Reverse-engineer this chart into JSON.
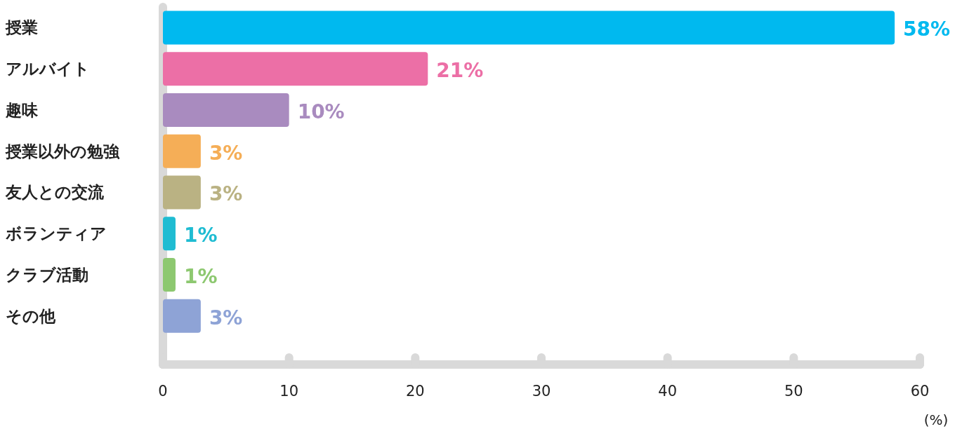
{
  "chart_data": {
    "type": "bar",
    "orientation": "horizontal",
    "categories": [
      "授業",
      "アルバイト",
      "趣味",
      "授業以外の勉強",
      "友人との交流",
      "ボランティア",
      "クラブ活動",
      "その他"
    ],
    "values": [
      58,
      21,
      10,
      3,
      3,
      1,
      1,
      3
    ],
    "colors": [
      "#00b9ef",
      "#ec6fa6",
      "#a98bbf",
      "#f5ae57",
      "#bab283",
      "#1fbcd2",
      "#8dc870",
      "#8ea3d6"
    ],
    "value_labels": [
      "58%",
      "21%",
      "10%",
      "3%",
      "3%",
      "1%",
      "1%",
      "3%"
    ],
    "xlim": [
      0,
      60
    ],
    "xticks": [
      0,
      10,
      20,
      30,
      40,
      50,
      60
    ],
    "xlabel": "(%)",
    "grid": false
  }
}
